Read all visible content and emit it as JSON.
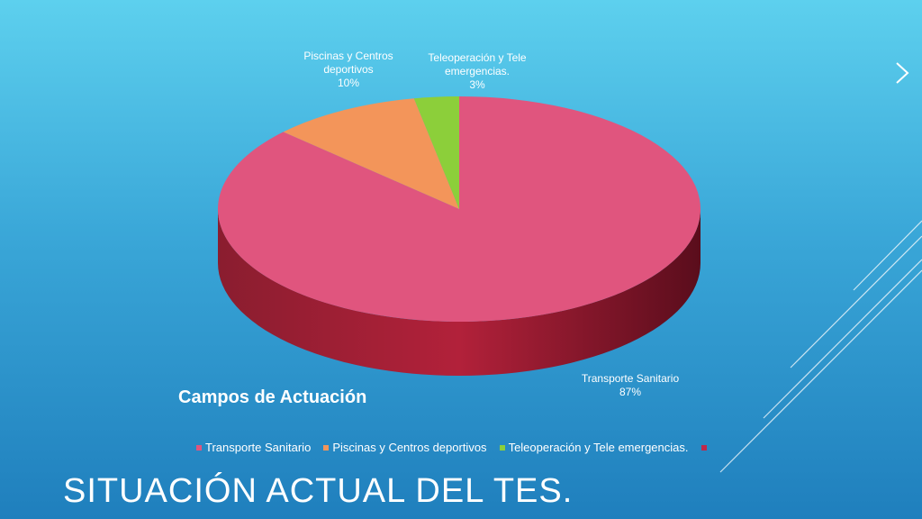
{
  "slide": {
    "title": "SITUACIÓN ACTUAL DEL TES.",
    "nav_arrow_icon": "chevron-right-icon"
  },
  "chart_data": {
    "type": "pie",
    "title": "Campos de Actuación",
    "legend_position": "bottom",
    "slices": [
      {
        "name": "Transporte Sanitario",
        "value": 87,
        "label": "Transporte Sanitario\n87%",
        "color": "#e0557e"
      },
      {
        "name": "Piscinas y Centros deportivos",
        "value": 10,
        "label": "Piscinas y Centros\ndeportivos\n10%",
        "color": "#f3955a"
      },
      {
        "name": "Teleoperación y Tele emergencias.",
        "value": 3,
        "label": "Teleoperación y Tele\nemergencias.\n3%",
        "color": "#8ccf3a"
      }
    ],
    "legend": [
      {
        "label": "Transporte Sanitario",
        "color": "#e0557e"
      },
      {
        "label": "Piscinas y Centros deportivos",
        "color": "#f3955a"
      },
      {
        "label": "Teleoperación y Tele emergencias.",
        "color": "#8ccf3a"
      },
      {
        "label": "",
        "color": "#c0284a"
      }
    ]
  }
}
